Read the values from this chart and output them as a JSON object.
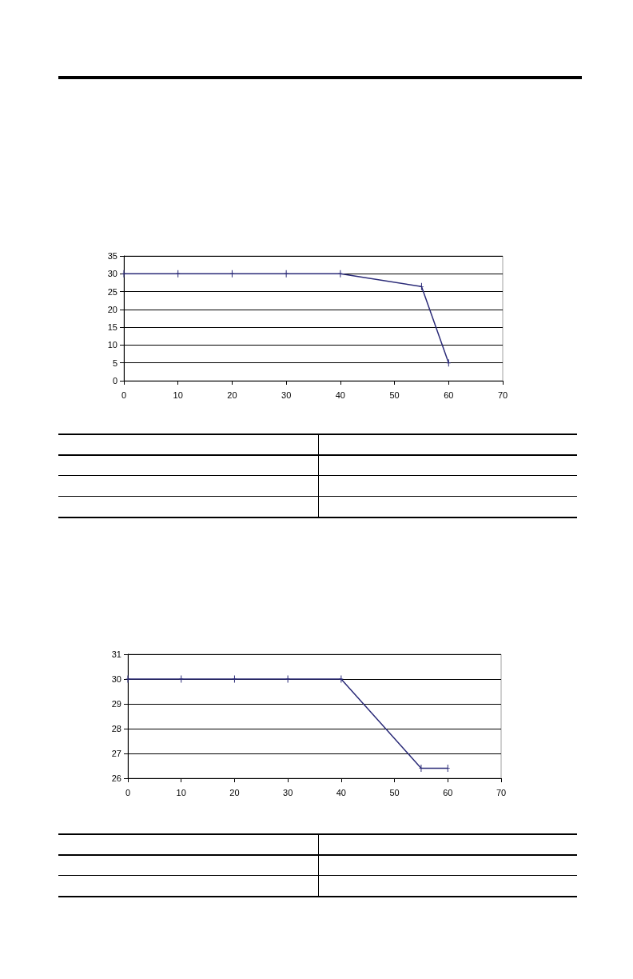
{
  "chart_data": [
    {
      "type": "line",
      "x": [
        0,
        10,
        20,
        30,
        40,
        55,
        60
      ],
      "values": [
        30,
        30,
        30,
        30,
        30,
        26.4,
        5
      ],
      "color": "#2b2b78",
      "xlim": [
        0,
        70
      ],
      "xticks": [
        0,
        10,
        20,
        30,
        40,
        50,
        60,
        70
      ],
      "ylim": [
        0,
        35
      ],
      "yticks": [
        0,
        5,
        10,
        15,
        20,
        25,
        30,
        35
      ],
      "grid": "y",
      "marker": "cross"
    },
    {
      "type": "line",
      "x": [
        0,
        10,
        20,
        30,
        40,
        55,
        60
      ],
      "values": [
        30,
        30,
        30,
        30,
        30,
        26.4,
        26.4
      ],
      "color": "#2b2b78",
      "xlim": [
        0,
        70
      ],
      "xticks": [
        0,
        10,
        20,
        30,
        40,
        50,
        60,
        70
      ],
      "ylim": [
        26,
        31
      ],
      "yticks": [
        26,
        27,
        28,
        29,
        30,
        31
      ],
      "grid": "y",
      "marker": "cross"
    }
  ]
}
